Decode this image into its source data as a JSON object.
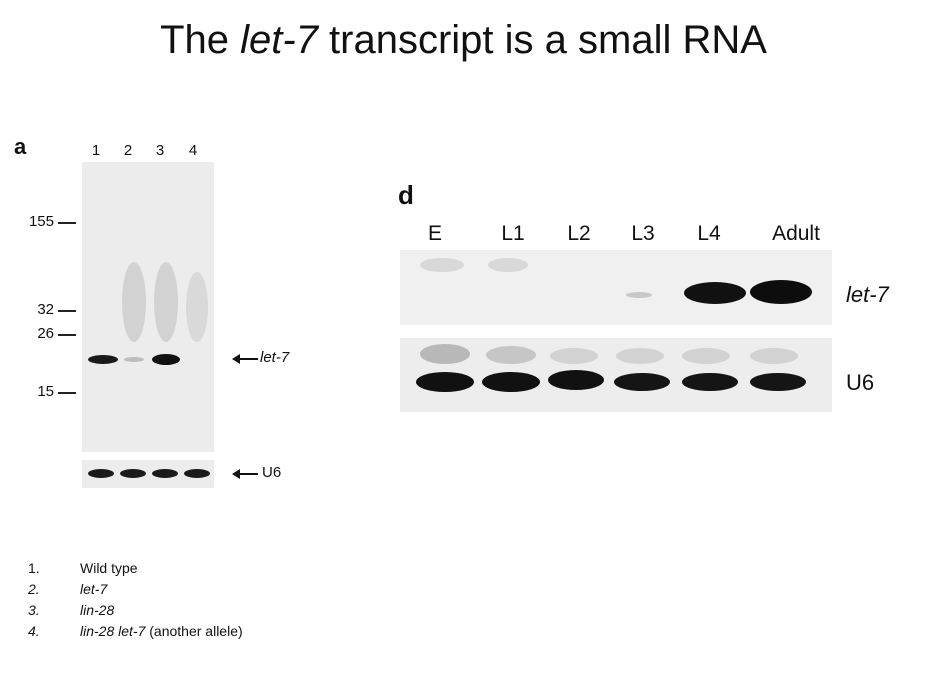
{
  "title": {
    "prefix": "The ",
    "gene": "let-7",
    "suffix": " transcript is a small RNA"
  },
  "panel_a": {
    "letter": "a",
    "lanes": [
      "1",
      "2",
      "3",
      "4"
    ],
    "markers": [
      "155",
      "32",
      "26",
      "15"
    ],
    "arrow_let7": "let-7",
    "arrow_u6": "U6"
  },
  "panel_d": {
    "letter": "d",
    "stages": [
      "E",
      "L1",
      "L2",
      "L3",
      "L4",
      "Adult"
    ],
    "row_let7": "let-7",
    "row_u6": "U6"
  },
  "legend": [
    {
      "num": "1.",
      "text": "Wild type",
      "suffix": ""
    },
    {
      "num": "2.",
      "text": "let-7",
      "suffix": ""
    },
    {
      "num": "3.",
      "text": "lin-28",
      "suffix": ""
    },
    {
      "num": "4.",
      "text": "lin-28 let-7",
      "suffix": " (another allele)"
    }
  ]
}
